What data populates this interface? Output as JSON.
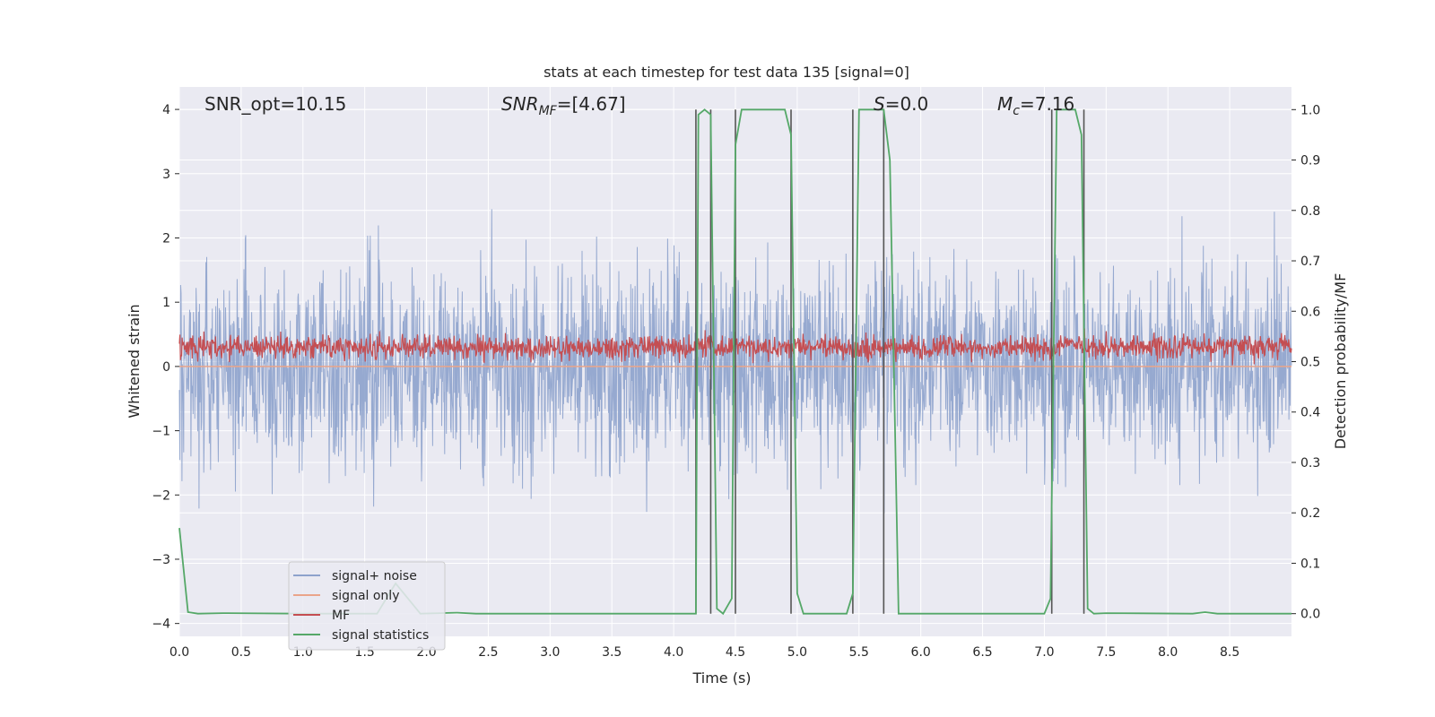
{
  "chart_data": {
    "type": "line",
    "title": "stats at each timestep for test data 135 [signal=0]",
    "xlabel": "Time (s)",
    "ylabel": "Whitened strain",
    "ylabel_right": "Detection probability/MF",
    "xlim": [
      0,
      9
    ],
    "ylim": [
      -4.2,
      4.35
    ],
    "ylim_right": [
      -0.045,
      1.045
    ],
    "xticks": [
      "0.0",
      "0.5",
      "1.0",
      "1.5",
      "2.0",
      "2.5",
      "3.0",
      "3.5",
      "4.0",
      "4.5",
      "5.0",
      "5.5",
      "6.0",
      "6.5",
      "7.0",
      "7.5",
      "8.0",
      "8.5"
    ],
    "yticks_left": [
      "−4",
      "−3",
      "−2",
      "−1",
      "0",
      "1",
      "2",
      "3",
      "4"
    ],
    "yticks_right": [
      "0.0",
      "0.1",
      "0.2",
      "0.3",
      "0.4",
      "0.5",
      "0.6",
      "0.7",
      "0.8",
      "0.9",
      "1.0"
    ],
    "grid": true,
    "annotations": {
      "snr_opt": "SNR_opt=10.15",
      "snr_mf_sym": "SNR",
      "snr_mf_sub": "MF",
      "snr_mf_rest": "=[4.67]",
      "s_sym": "S",
      "s_rest": "=0.0",
      "mc_sym": "M",
      "mc_sub": "c",
      "mc_rest": "=7.16"
    },
    "legend": {
      "placement": "lower-left",
      "entries": [
        "signal+ noise",
        "signal only",
        "MF",
        "signal statistics"
      ]
    },
    "colors": {
      "noise": "#8da2cc",
      "signal": "#eaa58a",
      "mf": "#c44e52",
      "stats": "#55a868",
      "vline": "#555555",
      "background": "#eaeaf2"
    },
    "series": [
      {
        "name": "signal+ noise",
        "description_values": "dense noise roughly within [-3.7, 4.0]",
        "axis": "left"
      },
      {
        "name": "signal only",
        "values_constant": 0,
        "axis": "left"
      },
      {
        "name": "MF",
        "description_values": "positive noise roughly within [0, 0.85]",
        "axis": "left"
      },
      {
        "name": "signal statistics",
        "axis": "right",
        "x": [
          0.0,
          0.07,
          0.15,
          0.35,
          1.0,
          1.6,
          1.75,
          1.95,
          2.25,
          2.4,
          3.5,
          4.18,
          4.2,
          4.25,
          4.3,
          4.35,
          4.4,
          4.47,
          4.5,
          4.55,
          4.6,
          4.9,
          4.95,
          5.0,
          5.05,
          5.4,
          5.45,
          5.5,
          5.7,
          5.75,
          5.82,
          6.5,
          7.0,
          7.05,
          7.1,
          7.15,
          7.25,
          7.3,
          7.35,
          7.4,
          7.5,
          8.2,
          8.3,
          8.4,
          9.0
        ],
        "y": [
          0.17,
          0.003,
          0.0,
          0.001,
          0.0,
          0.0,
          0.06,
          0.0,
          0.002,
          0.0,
          0.0,
          0.0,
          0.99,
          1.0,
          0.99,
          0.01,
          0.0,
          0.03,
          0.93,
          1.0,
          1.0,
          1.0,
          0.95,
          0.04,
          0.0,
          0.0,
          0.04,
          1.0,
          1.0,
          0.9,
          0.0,
          0.0,
          0.0,
          0.03,
          1.0,
          1.0,
          1.0,
          0.95,
          0.01,
          0.0,
          0.001,
          0.0,
          0.003,
          0.0,
          0.0
        ]
      }
    ],
    "vlines_x": [
      4.18,
      4.3,
      4.5,
      4.95,
      5.45,
      5.7,
      7.06,
      7.32
    ]
  }
}
